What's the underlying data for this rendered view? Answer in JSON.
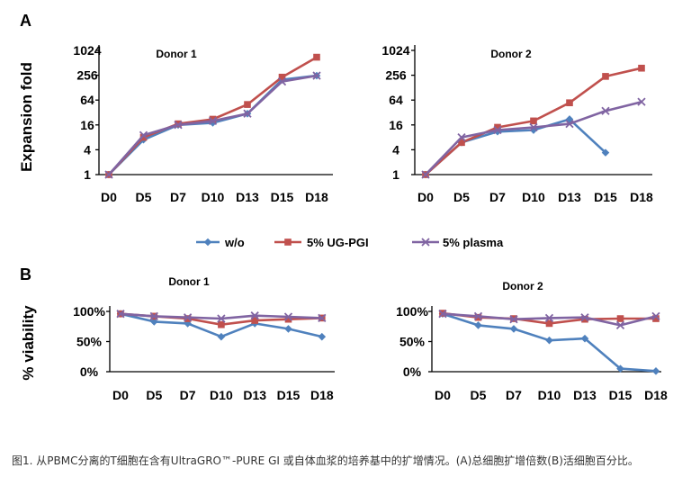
{
  "colors": {
    "w/o": "#4f81bd",
    "ug": "#c0504d",
    "plasma": "#8064a2"
  },
  "legend": {
    "items": [
      {
        "key": "w/o",
        "label": "w/o"
      },
      {
        "key": "ug",
        "label": "5% UG-PGI"
      },
      {
        "key": "plasma",
        "label": "5% plasma"
      }
    ]
  },
  "caption": "图1. 从PBMC分离的T细胞在含有UltraGRO™-PURE GI 或自体血浆的培养基中的扩增情况。(A)总细胞扩增倍数(B)活细胞百分比。",
  "chart_data": [
    {
      "id": "A1",
      "panel_letter": "A",
      "type": "line",
      "title": "Donor 1",
      "ylabel": "Expansion fold",
      "yscale": "log2",
      "ylim": [
        1,
        1024
      ],
      "yticks": [
        "1024",
        "256",
        "64",
        "16",
        "4",
        "1"
      ],
      "categories": [
        "D0",
        "D5",
        "D7",
        "D10",
        "D13",
        "D15",
        "D18"
      ],
      "series": [
        {
          "key": "w/o",
          "name": "w/o",
          "marker": "diamond",
          "values": [
            1,
            7,
            16,
            18,
            30,
            200,
            250
          ]
        },
        {
          "key": "ug",
          "name": "5% UG-PGI",
          "marker": "square",
          "values": [
            1,
            8,
            17,
            22,
            50,
            230,
            700
          ]
        },
        {
          "key": "plasma",
          "name": "5% plasma",
          "marker": "x",
          "values": [
            1,
            9,
            16,
            20,
            30,
            180,
            250
          ]
        }
      ]
    },
    {
      "id": "A2",
      "panel_letter": "",
      "type": "line",
      "title": "Donor 2",
      "ylabel": "",
      "yscale": "log2",
      "ylim": [
        1,
        1024
      ],
      "yticks": [
        "1024",
        "256",
        "64",
        "16",
        "4",
        "1"
      ],
      "categories": [
        "D0",
        "D5",
        "D7",
        "D10",
        "D13",
        "D15",
        "D18"
      ],
      "series": [
        {
          "key": "w/o",
          "name": "w/o",
          "marker": "diamond",
          "values": [
            1,
            6,
            11,
            12,
            22,
            3.4,
            null
          ]
        },
        {
          "key": "ug",
          "name": "5% UG-PGI",
          "marker": "square",
          "values": [
            1,
            6,
            14,
            20,
            55,
            240,
            380
          ]
        },
        {
          "key": "plasma",
          "name": "5% plasma",
          "marker": "x",
          "values": [
            1,
            8,
            12,
            14,
            17,
            35,
            58
          ]
        }
      ]
    },
    {
      "id": "B1",
      "panel_letter": "B",
      "type": "line",
      "title": "Donor 1",
      "ylabel": "% viability",
      "yscale": "linear",
      "ylim": [
        0,
        100
      ],
      "yticks": [
        "100%",
        "50%",
        "0%"
      ],
      "categories": [
        "D0",
        "D5",
        "D7",
        "D10",
        "D13",
        "D15",
        "D18"
      ],
      "series": [
        {
          "key": "w/o",
          "name": "w/o",
          "marker": "diamond",
          "values": [
            96,
            83,
            80,
            58,
            80,
            71,
            58
          ]
        },
        {
          "key": "ug",
          "name": "5% UG-PGI",
          "marker": "square",
          "values": [
            96,
            92,
            88,
            78,
            85,
            87,
            89
          ]
        },
        {
          "key": "plasma",
          "name": "5% plasma",
          "marker": "x",
          "values": [
            96,
            92,
            90,
            88,
            93,
            91,
            89
          ]
        }
      ]
    },
    {
      "id": "B2",
      "panel_letter": "",
      "type": "line",
      "title": "Donor 2",
      "ylabel": "",
      "yscale": "linear",
      "ylim": [
        0,
        100
      ],
      "yticks": [
        "100%",
        "50%",
        "0%"
      ],
      "categories": [
        "D0",
        "D5",
        "D7",
        "D10",
        "D13",
        "D15",
        "D18"
      ],
      "series": [
        {
          "key": "w/o",
          "name": "w/o",
          "marker": "diamond",
          "values": [
            96,
            77,
            71,
            52,
            55,
            5,
            1
          ]
        },
        {
          "key": "ug",
          "name": "5% UG-PGI",
          "marker": "square",
          "values": [
            97,
            90,
            88,
            80,
            87,
            88,
            88
          ]
        },
        {
          "key": "plasma",
          "name": "5% plasma",
          "marker": "x",
          "values": [
            96,
            92,
            87,
            89,
            90,
            77,
            92
          ]
        }
      ]
    }
  ]
}
